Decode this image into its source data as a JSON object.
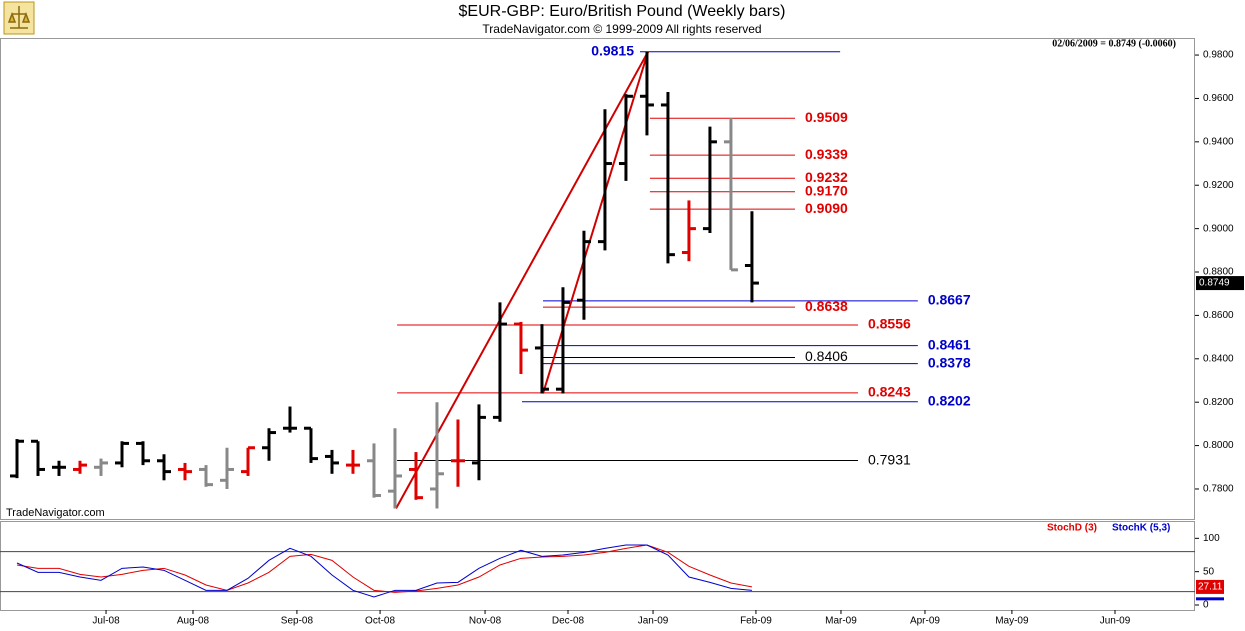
{
  "chart_data": [
    {
      "type": "ohlc",
      "title": "$EUR-GBP:  Euro/British Pound  (Weekly bars)",
      "subtitle": "TradeNavigator.com © 1999-2009 All rights reserved",
      "quote": "02/06/2009 = 0.8749 (-0.0060)",
      "watermark": "TradeNavigator.com",
      "last_price": 0.8749,
      "xlim": [
        -0.81,
        56.1
      ],
      "ylim": [
        0.7657,
        0.9874
      ],
      "yticks": [
        {
          "value": 0.78,
          "label": "0.7800"
        },
        {
          "value": 0.8,
          "label": "0.8000"
        },
        {
          "value": 0.82,
          "label": "0.8200"
        },
        {
          "value": 0.84,
          "label": "0.8400"
        },
        {
          "value": 0.86,
          "label": "0.8600"
        },
        {
          "value": 0.88,
          "label": "0.8800"
        },
        {
          "value": 0.9,
          "label": "0.9000"
        },
        {
          "value": 0.92,
          "label": "0.9200"
        },
        {
          "value": 0.94,
          "label": "0.9400"
        },
        {
          "value": 0.96,
          "label": "0.9600"
        },
        {
          "value": 0.98,
          "label": "0.9800"
        }
      ],
      "open": [
        0.786,
        0.802,
        0.79,
        0.789,
        0.79,
        0.792,
        0.801,
        0.793,
        0.789,
        0.789,
        0.784,
        0.788,
        0.799,
        0.808,
        0.808,
        0.795,
        0.791,
        0.793,
        0.779,
        0.789,
        0.78,
        0.793,
        0.792,
        0.813,
        0.856,
        0.845,
        0.826,
        0.867,
        0.894,
        0.93,
        0.961,
        0.957,
        0.889,
        0.9,
        0.94,
        0.883
      ],
      "high": [
        0.803,
        0.802,
        0.793,
        0.793,
        0.794,
        0.802,
        0.802,
        0.796,
        0.792,
        0.791,
        0.799,
        0.799,
        0.808,
        0.818,
        0.808,
        0.798,
        0.798,
        0.801,
        0.808,
        0.797,
        0.82,
        0.812,
        0.819,
        0.866,
        0.857,
        0.856,
        0.873,
        0.899,
        0.955,
        0.962,
        0.9815,
        0.963,
        0.913,
        0.947,
        0.951,
        0.908
      ],
      "low": [
        0.785,
        0.786,
        0.786,
        0.787,
        0.786,
        0.79,
        0.791,
        0.784,
        0.784,
        0.781,
        0.78,
        0.786,
        0.793,
        0.806,
        0.792,
        0.787,
        0.787,
        0.776,
        0.771,
        0.775,
        0.771,
        0.781,
        0.784,
        0.811,
        0.833,
        0.824,
        0.824,
        0.858,
        0.89,
        0.922,
        0.943,
        0.884,
        0.885,
        0.898,
        0.881,
        0.866
      ],
      "close": [
        0.802,
        0.789,
        0.79,
        0.791,
        0.792,
        0.801,
        0.793,
        0.788,
        0.788,
        0.782,
        0.789,
        0.799,
        0.806,
        0.808,
        0.794,
        0.792,
        0.791,
        0.777,
        0.786,
        0.776,
        0.787,
        0.793,
        0.813,
        0.856,
        0.844,
        0.826,
        0.866,
        0.894,
        0.93,
        0.961,
        0.957,
        0.888,
        0.9,
        0.94,
        0.881,
        0.8749
      ],
      "colors": [
        "#000000",
        "#000000",
        "#000000",
        "#e00000",
        "#888888",
        "#000000",
        "#000000",
        "#000000",
        "#e00000",
        "#888888",
        "#888888",
        "#e00000",
        "#000000",
        "#000000",
        "#000000",
        "#000000",
        "#e00000",
        "#888888",
        "#888888",
        "#e00000",
        "#888888",
        "#e00000",
        "#000000",
        "#000000",
        "#e00000",
        "#000000",
        "#000000",
        "#000000",
        "#000000",
        "#000000",
        "#000000",
        "#000000",
        "#e00000",
        "#000000",
        "#888888",
        "#000000"
      ],
      "trendlines": [
        {
          "color": "#d00000",
          "points": [
            [
              18.05,
              0.771
            ],
            [
              30.05,
              0.9815
            ]
          ]
        },
        {
          "color": "#d00000",
          "points": [
            [
              25.05,
              0.824
            ],
            [
              30.05,
              0.9815
            ]
          ]
        }
      ],
      "levels": [
        {
          "value": 0.9815,
          "label": "0.9815",
          "color": "#0000cc",
          "from": 29.67,
          "to": 39.2,
          "side": "left"
        },
        {
          "value": 0.9509,
          "label": "0.9509",
          "color": "#e00000",
          "from": 30.14,
          "to": 37.05,
          "side": "right"
        },
        {
          "value": 0.9339,
          "label": "0.9339",
          "color": "#e00000",
          "from": 30.14,
          "to": 37.05,
          "side": "right"
        },
        {
          "value": 0.9232,
          "label": "0.9232",
          "color": "#e00000",
          "from": 30.14,
          "to": 37.05,
          "side": "right"
        },
        {
          "value": 0.917,
          "label": "0.9170",
          "color": "#e00000",
          "from": 30.14,
          "to": 37.05,
          "side": "right"
        },
        {
          "value": 0.909,
          "label": "0.9090",
          "color": "#e00000",
          "from": 30.14,
          "to": 37.05,
          "side": "right"
        },
        {
          "value": 0.8667,
          "label": "0.8667",
          "color": "#0000cc",
          "from": 25.05,
          "to": 42.9,
          "side": "right"
        },
        {
          "value": 0.8638,
          "label": "0.8638",
          "color": "#e00000",
          "from": 25.05,
          "to": 37.05,
          "side": "right"
        },
        {
          "value": 0.8556,
          "label": "0.8556",
          "color": "#e00000",
          "from": 18.1,
          "to": 40.05,
          "side": "right"
        },
        {
          "value": 0.8461,
          "label": "0.8461",
          "color": "#0000cc",
          "from": 25.05,
          "to": 42.9,
          "side": "right"
        },
        {
          "value": 0.8406,
          "label": "0.8406",
          "color": "#000000",
          "from": 25.05,
          "to": 37.05,
          "side": "right"
        },
        {
          "value": 0.8378,
          "label": "0.8378",
          "color": "#0000cc",
          "from": 25.05,
          "to": 42.9,
          "side": "right"
        },
        {
          "value": 0.8243,
          "label": "0.8243",
          "color": "#e00000",
          "from": 18.1,
          "to": 40.05,
          "side": "right"
        },
        {
          "value": 0.8202,
          "label": "0.8202",
          "color": "#0000cc",
          "from": 24.05,
          "to": 42.9,
          "side": "right"
        },
        {
          "value": 0.7931,
          "label": "0.7931",
          "color": "#000000",
          "from": 18.1,
          "to": 40.05,
          "side": "right"
        }
      ]
    },
    {
      "type": "line",
      "xlim": [
        -0.81,
        56.1
      ],
      "ylim": [
        -7.5,
        124.5
      ],
      "yticks": [
        0,
        50,
        100
      ],
      "levels": [
        20,
        80
      ],
      "xticks": [
        {
          "value": 4.24,
          "label": "Jul-08"
        },
        {
          "value": 8.38,
          "label": "Aug-08"
        },
        {
          "value": 13.33,
          "label": "Sep-08"
        },
        {
          "value": 17.29,
          "label": "Oct-08"
        },
        {
          "value": 22.29,
          "label": "Nov-08"
        },
        {
          "value": 26.24,
          "label": "Dec-08"
        },
        {
          "value": 30.29,
          "label": "Jan-09"
        },
        {
          "value": 35.19,
          "label": "Feb-09"
        },
        {
          "value": 39.24,
          "label": "Mar-09"
        },
        {
          "value": 43.24,
          "label": "Apr-09"
        },
        {
          "value": 47.38,
          "label": "May-09"
        },
        {
          "value": 52.29,
          "label": "Jun-09"
        }
      ],
      "series": [
        {
          "name": "StochD (3)",
          "color": "#e00000",
          "values": [
            60,
            55,
            55,
            46,
            42,
            46,
            52,
            55,
            45,
            30,
            22,
            33,
            49,
            73,
            76,
            67,
            42,
            22,
            19,
            21,
            25,
            30,
            42,
            60,
            70,
            72,
            73,
            75,
            79,
            85,
            90,
            79,
            58,
            45,
            33,
            27.11
          ]
        },
        {
          "name": "StochK (5,3)",
          "color": "#0000cc",
          "values": [
            63,
            49,
            49,
            42,
            37,
            55,
            57,
            52,
            37,
            22,
            22,
            40,
            67,
            85,
            73,
            45,
            22,
            12,
            22,
            22,
            33,
            34,
            55,
            70,
            82,
            73,
            75,
            79,
            85,
            90,
            90,
            75,
            42,
            34,
            25,
            22
          ]
        }
      ]
    }
  ]
}
